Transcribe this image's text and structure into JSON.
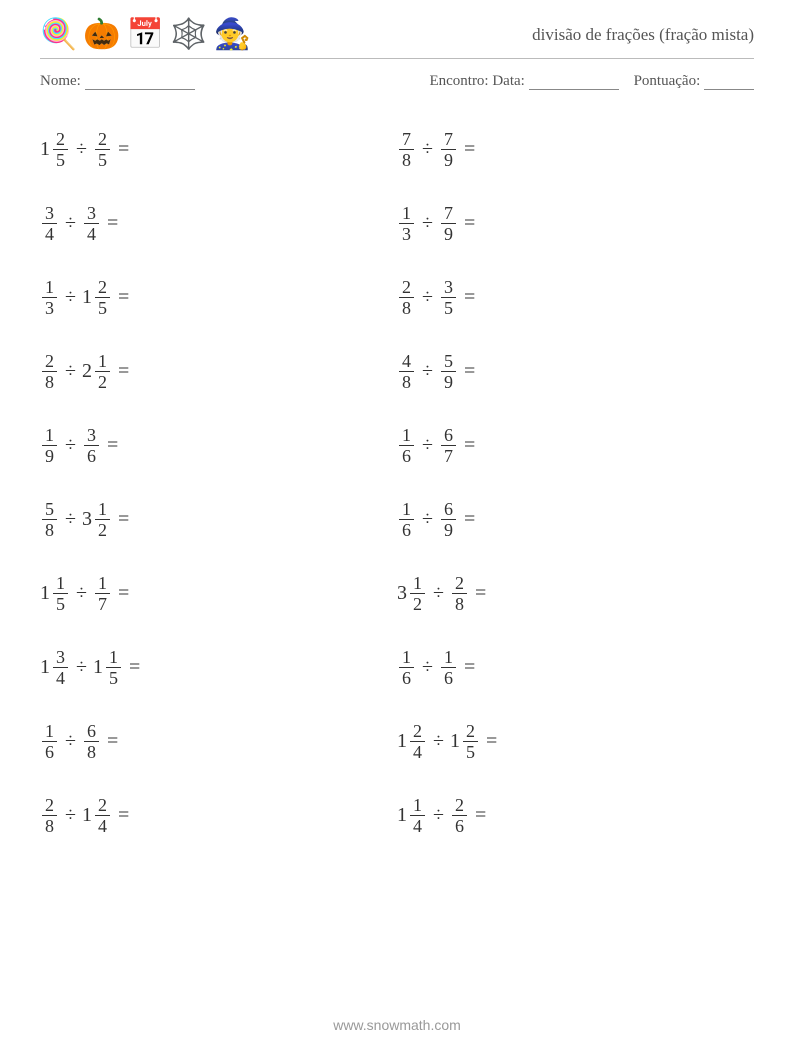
{
  "header": {
    "title": "divisão de frações (fração mista)",
    "icons": [
      "🍭",
      "🎃",
      "📅",
      "🕸️",
      "🧙"
    ]
  },
  "info": {
    "name_label": "Nome:",
    "date_label": "Encontro: Data:",
    "score_label": "Pontuação:",
    "name_blank_width": 110,
    "date_blank_width": 90,
    "score_blank_width": 50
  },
  "footer": {
    "text": "www.snowmath.com"
  },
  "operator": "÷",
  "equals": "=",
  "columns": [
    [
      {
        "a": {
          "w": "1",
          "n": "2",
          "d": "5"
        },
        "b": {
          "w": "",
          "n": "2",
          "d": "5"
        }
      },
      {
        "a": {
          "w": "",
          "n": "3",
          "d": "4"
        },
        "b": {
          "w": "",
          "n": "3",
          "d": "4"
        }
      },
      {
        "a": {
          "w": "",
          "n": "1",
          "d": "3"
        },
        "b": {
          "w": "1",
          "n": "2",
          "d": "5"
        }
      },
      {
        "a": {
          "w": "",
          "n": "2",
          "d": "8"
        },
        "b": {
          "w": "2",
          "n": "1",
          "d": "2"
        }
      },
      {
        "a": {
          "w": "",
          "n": "1",
          "d": "9"
        },
        "b": {
          "w": "",
          "n": "3",
          "d": "6"
        }
      },
      {
        "a": {
          "w": "",
          "n": "5",
          "d": "8"
        },
        "b": {
          "w": "3",
          "n": "1",
          "d": "2"
        }
      },
      {
        "a": {
          "w": "1",
          "n": "1",
          "d": "5"
        },
        "b": {
          "w": "",
          "n": "1",
          "d": "7"
        }
      },
      {
        "a": {
          "w": "1",
          "n": "3",
          "d": "4"
        },
        "b": {
          "w": "1",
          "n": "1",
          "d": "5"
        }
      },
      {
        "a": {
          "w": "",
          "n": "1",
          "d": "6"
        },
        "b": {
          "w": "",
          "n": "6",
          "d": "8"
        }
      },
      {
        "a": {
          "w": "",
          "n": "2",
          "d": "8"
        },
        "b": {
          "w": "1",
          "n": "2",
          "d": "4"
        }
      }
    ],
    [
      {
        "a": {
          "w": "",
          "n": "7",
          "d": "8"
        },
        "b": {
          "w": "",
          "n": "7",
          "d": "9"
        }
      },
      {
        "a": {
          "w": "",
          "n": "1",
          "d": "3"
        },
        "b": {
          "w": "",
          "n": "7",
          "d": "9"
        }
      },
      {
        "a": {
          "w": "",
          "n": "2",
          "d": "8"
        },
        "b": {
          "w": "",
          "n": "3",
          "d": "5"
        }
      },
      {
        "a": {
          "w": "",
          "n": "4",
          "d": "8"
        },
        "b": {
          "w": "",
          "n": "5",
          "d": "9"
        }
      },
      {
        "a": {
          "w": "",
          "n": "1",
          "d": "6"
        },
        "b": {
          "w": "",
          "n": "6",
          "d": "7"
        }
      },
      {
        "a": {
          "w": "",
          "n": "1",
          "d": "6"
        },
        "b": {
          "w": "",
          "n": "6",
          "d": "9"
        }
      },
      {
        "a": {
          "w": "3",
          "n": "1",
          "d": "2"
        },
        "b": {
          "w": "",
          "n": "2",
          "d": "8"
        }
      },
      {
        "a": {
          "w": "",
          "n": "1",
          "d": "6"
        },
        "b": {
          "w": "",
          "n": "1",
          "d": "6"
        }
      },
      {
        "a": {
          "w": "1",
          "n": "2",
          "d": "4"
        },
        "b": {
          "w": "1",
          "n": "2",
          "d": "5"
        }
      },
      {
        "a": {
          "w": "1",
          "n": "1",
          "d": "4"
        },
        "b": {
          "w": "",
          "n": "2",
          "d": "6"
        }
      }
    ]
  ]
}
